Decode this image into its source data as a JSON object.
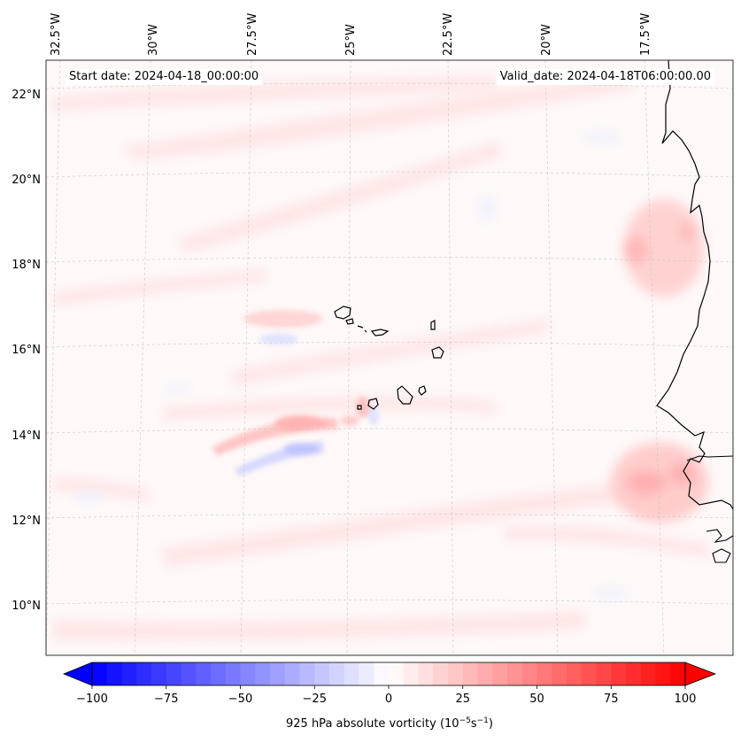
{
  "header": {
    "start_date": "Start date: 2024-04-18_00:00:00",
    "valid_date": "Valid_date: 2024-04-18T06:00:00.00"
  },
  "map": {
    "extent": {
      "lon_min": -33,
      "lon_max": -16,
      "lat_min": 9,
      "lat_max": 22.8
    },
    "lon_labels": [
      "32.5°W",
      "30°W",
      "27.5°W",
      "25°W",
      "22.5°W",
      "20°W",
      "17.5°W"
    ],
    "lat_labels": [
      "22°N",
      "20°N",
      "18°N",
      "16°N",
      "14°N",
      "12°N",
      "10°N"
    ],
    "gridlines": true,
    "coastline_color": "#000000",
    "features": [
      "Cape Verde islands",
      "West African coastline"
    ]
  },
  "colorbar": {
    "label_prefix": "925 hPa absolute vorticity (10",
    "label_exp1": "−5",
    "label_mid": "s",
    "label_exp2": "−1",
    "label_suffix": ")",
    "ticks": [
      "−100",
      "−75",
      "−50",
      "−25",
      "0",
      "25",
      "50",
      "75",
      "100"
    ],
    "range": [
      -100,
      100
    ],
    "levels_step": 5,
    "colormap": "bwr",
    "extend": "both"
  },
  "colors": {
    "negative": "#0000ff",
    "neutral": "#ffffff",
    "positive": "#ff0000"
  }
}
